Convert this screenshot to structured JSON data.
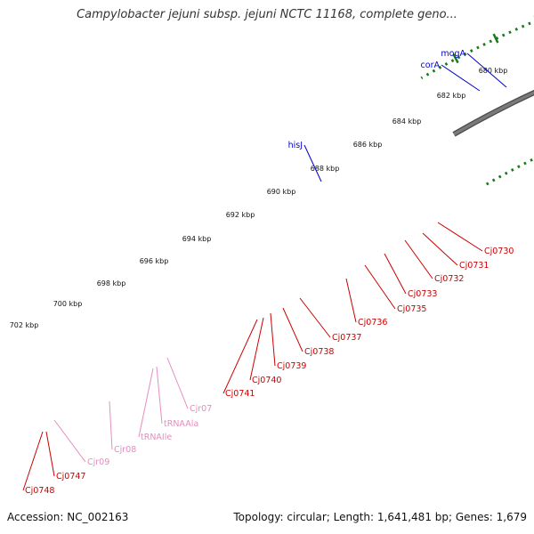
{
  "header": {
    "title": "Campylobacter jejuni subsp. jejuni NCTC 11168, complete geno..."
  },
  "footer": {
    "accession": "Accession: NC_002163",
    "summary": "Topology: circular; Length: 1,641,481 bp; Genes: 1,679"
  },
  "scale": {
    "ticks": [
      "680 kbp",
      "682 kbp",
      "684 kbp",
      "686 kbp",
      "688 kbp",
      "690 kbp",
      "692 kbp",
      "694 kbp",
      "696 kbp",
      "698 kbp",
      "700 kbp",
      "702 kbp"
    ]
  },
  "labels": {
    "top": [
      {
        "text": "mogA",
        "color": "#0000cc"
      },
      {
        "text": "corA",
        "color": "#0000cc"
      },
      {
        "text": "hisJ",
        "color": "#0000cc"
      }
    ],
    "bottom": [
      {
        "text": "Cj0730",
        "color": "#cc0000"
      },
      {
        "text": "Cj0731",
        "color": "#cc0000"
      },
      {
        "text": "Cj0732",
        "color": "#cc0000"
      },
      {
        "text": "Cj0733",
        "color": "#cc0000"
      },
      {
        "text": "Cj0735",
        "color": "#cc0000"
      },
      {
        "text": "Cj0736",
        "color": "#cc0000"
      },
      {
        "text": "Cj0737",
        "color": "#cc0000"
      },
      {
        "text": "Cj0738",
        "color": "#cc0000"
      },
      {
        "text": "Cj0739",
        "color": "#cc0000"
      },
      {
        "text": "Cj0740",
        "color": "#cc0000"
      },
      {
        "text": "Cj0741",
        "color": "#cc0000"
      },
      {
        "text": "Cjr07",
        "color": "#e68cc0"
      },
      {
        "text": "tRNAAla",
        "color": "#e68cc0"
      },
      {
        "text": "tRNAIle",
        "color": "#e68cc0"
      },
      {
        "text": "Cjr08",
        "color": "#e68cc0"
      },
      {
        "text": "Cjr09",
        "color": "#e68cc0"
      },
      {
        "text": "Cj0747",
        "color": "#cc0000"
      },
      {
        "text": "Cj0748",
        "color": "#cc0000"
      }
    ]
  },
  "colors": {
    "backbone": "#7a7a7a",
    "ticks": "#1a7a1a",
    "cds": "#e00000",
    "gene_blue": "#0000ee",
    "gene_dark_blue": "#4a4490",
    "rna": "#f4a6d0"
  }
}
